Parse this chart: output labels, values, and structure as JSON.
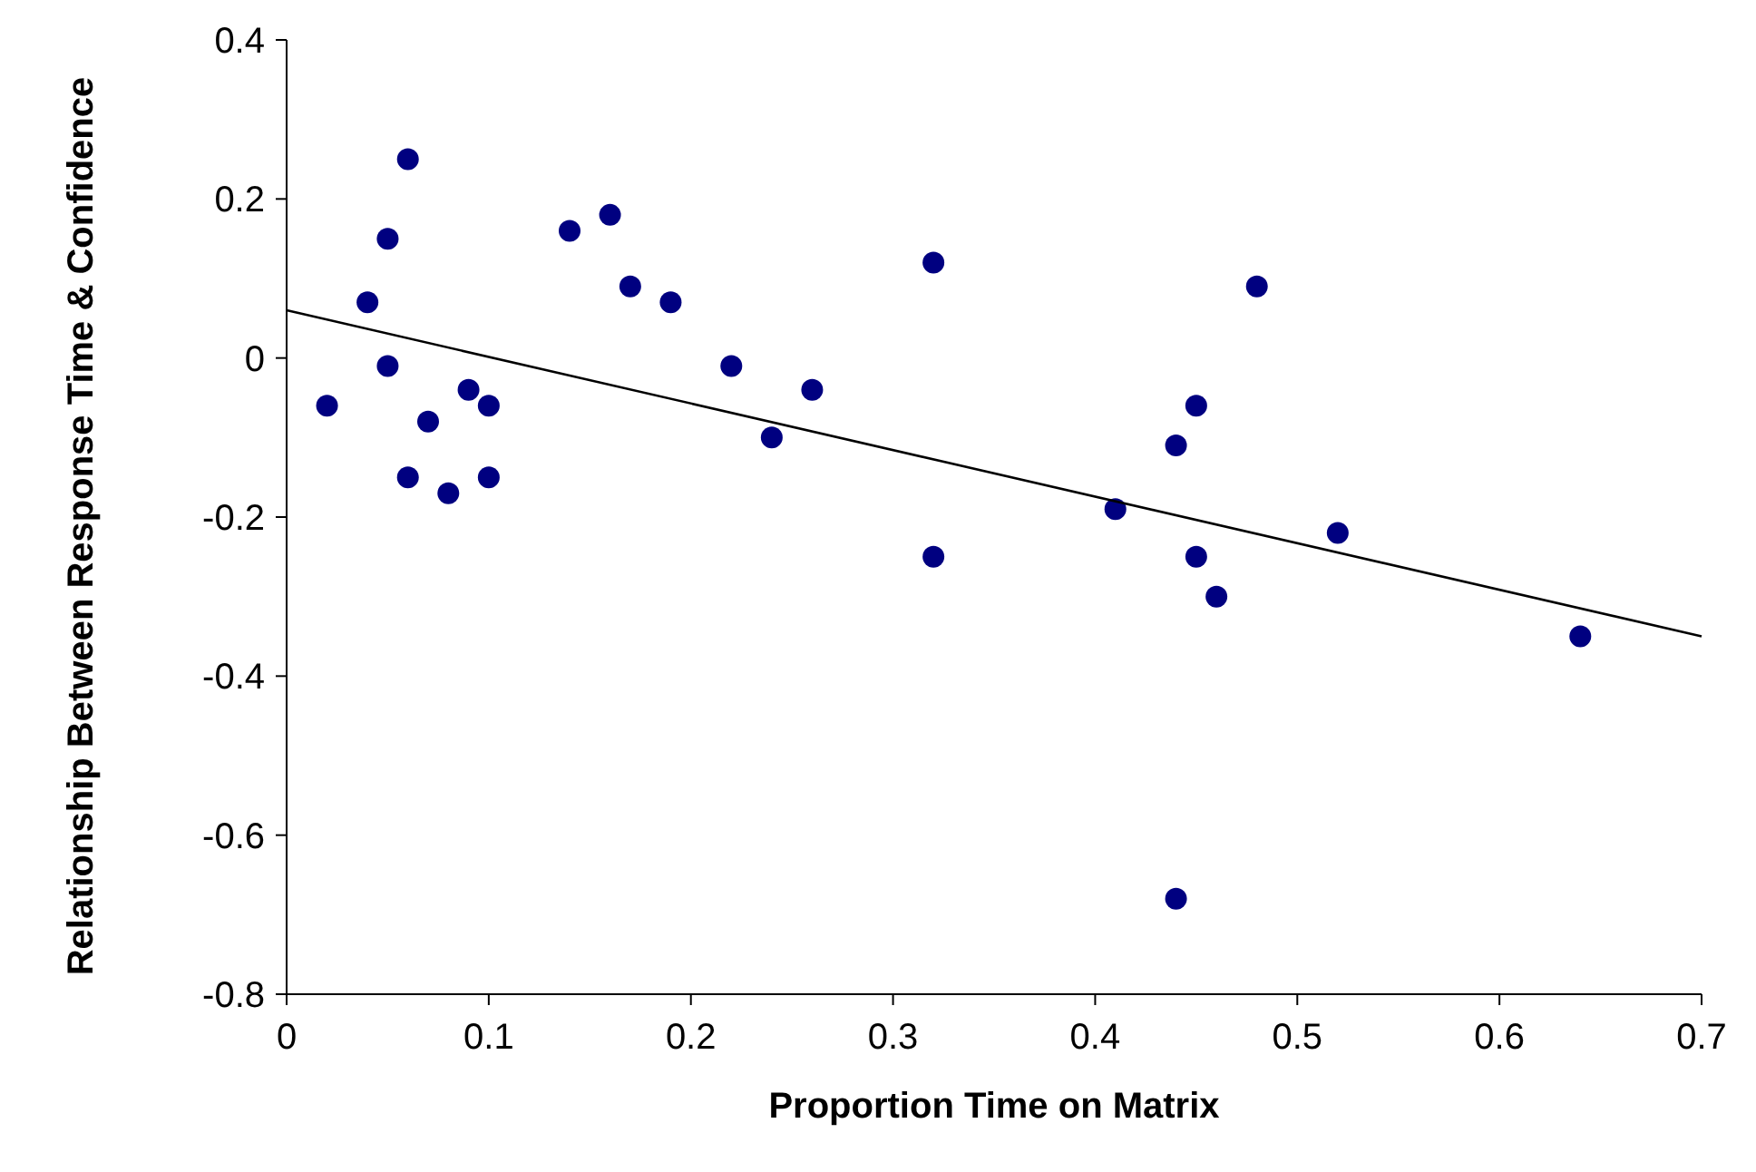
{
  "chart_data": {
    "type": "scatter",
    "xlabel": "Proportion Time on Matrix",
    "ylabel": "Relationship Between Response Time & Confidence",
    "xlim": [
      0,
      0.7
    ],
    "ylim": [
      -0.8,
      0.4
    ],
    "xticks": [
      0,
      0.1,
      0.2,
      0.3,
      0.4,
      0.5,
      0.6,
      0.7
    ],
    "yticks": [
      -0.8,
      -0.6,
      -0.4,
      -0.2,
      0,
      0.2,
      0.4
    ],
    "grid": false,
    "series": [
      {
        "marker": "circle",
        "color": "#000080",
        "x": [
          0.02,
          0.04,
          0.05,
          0.05,
          0.06,
          0.06,
          0.07,
          0.08,
          0.09,
          0.1,
          0.1,
          0.14,
          0.16,
          0.17,
          0.19,
          0.22,
          0.24,
          0.26,
          0.32,
          0.32,
          0.41,
          0.44,
          0.44,
          0.45,
          0.45,
          0.46,
          0.48,
          0.52,
          0.64
        ],
        "values": [
          -0.06,
          0.07,
          0.15,
          -0.01,
          0.25,
          -0.15,
          -0.08,
          -0.17,
          -0.04,
          -0.06,
          -0.15,
          0.16,
          0.18,
          0.09,
          0.07,
          -0.01,
          -0.1,
          -0.04,
          0.12,
          -0.25,
          -0.19,
          -0.11,
          -0.68,
          -0.06,
          -0.25,
          -0.3,
          0.09,
          -0.22,
          -0.35
        ]
      },
      {
        "type": "line",
        "color": "#000000",
        "line_style": "solid",
        "x": [
          0,
          0.7
        ],
        "values": [
          0.06,
          -0.35
        ]
      }
    ]
  }
}
